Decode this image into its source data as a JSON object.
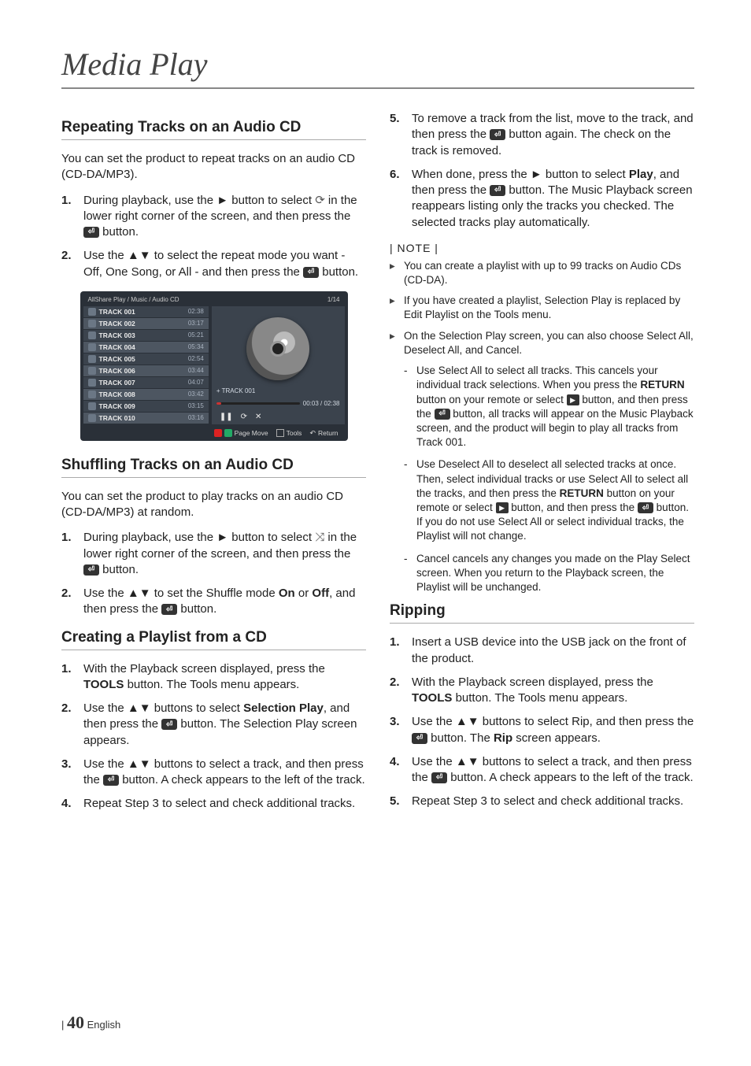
{
  "page": {
    "title": "Media Play",
    "footer_page": "40",
    "footer_lang": "English"
  },
  "left": {
    "sec1": {
      "title": "Repeating Tracks on an Audio CD",
      "intro": "You can set the product to repeat tracks on an audio CD (CD-DA/MP3).",
      "steps": [
        "During playback, use the ► button to select ⟳ in the lower right corner of the screen, and then press the ⏎ button.",
        "Use the ▲▼ to select the repeat mode you want - Off, One Song, or All - and then press the ⏎ button."
      ]
    },
    "player": {
      "breadcrumb": "AllShare Play  / Music /      Audio CD",
      "counter": "1/14",
      "tracks": [
        {
          "name": "TRACK 001",
          "time": "02:38",
          "alt": false
        },
        {
          "name": "TRACK 002",
          "time": "03:17",
          "alt": true
        },
        {
          "name": "TRACK 003",
          "time": "05:21",
          "alt": false
        },
        {
          "name": "TRACK 004",
          "time": "05:34",
          "alt": true
        },
        {
          "name": "TRACK 005",
          "time": "02:54",
          "alt": false
        },
        {
          "name": "TRACK 006",
          "time": "03:44",
          "alt": true
        },
        {
          "name": "TRACK 007",
          "time": "04:07",
          "alt": false
        },
        {
          "name": "TRACK 008",
          "time": "03:42",
          "alt": true
        },
        {
          "name": "TRACK 009",
          "time": "03:15",
          "alt": false
        },
        {
          "name": "TRACK 010",
          "time": "03:16",
          "alt": true
        }
      ],
      "now_playing": "+ TRACK 001",
      "elapsed": "00:03 / 02:38",
      "ctrl_glyphs": [
        "❚❚",
        "⟳",
        "✕"
      ],
      "bottom": {
        "pagemove": "Page Move",
        "tools": "Tools",
        "return": "Return"
      }
    },
    "sec2": {
      "title": "Shuffling Tracks on an Audio CD",
      "intro": "You can set the product to play tracks on an audio CD (CD-DA/MP3) at random.",
      "steps": [
        "During playback, use the ► button to select ⤨ in the lower right corner of the screen, and then press the ⏎ button.",
        "Use the ▲▼ to set the Shuffle mode On or Off, and then press the ⏎ button."
      ]
    },
    "sec3": {
      "title": "Creating a Playlist from a CD",
      "steps": [
        "With the Playback screen displayed, press the TOOLS button. The Tools menu appears.",
        "Use the ▲▼ buttons to select Selection Play, and then press the ⏎ button. The Selection Play screen appears.",
        "Use the ▲▼ buttons to select a track, and then press the ⏎ button. A check appears to the left of the track.",
        "Repeat Step 3 to select and check additional tracks."
      ]
    }
  },
  "right": {
    "cont_steps": [
      "To remove a track from the list, move to the track, and then press the ⏎ button again. The check on the track is removed.",
      "When done, press the ► button to select Play, and then press the ⏎ button. The Music Playback screen reappears listing only the tracks you checked. The selected tracks play automatically."
    ],
    "note_label": "| NOTE |",
    "notes": [
      "You can create a playlist with up to 99 tracks on Audio CDs (CD-DA).",
      "If you have created a playlist, Selection Play is replaced by Edit Playlist on the Tools menu.",
      "On the Selection Play screen, you can also choose Select All, Deselect All, and Cancel."
    ],
    "subnotes": [
      "Use Select All to select all tracks. This cancels your individual track selections. When you press the RETURN button on your remote or select ▶ button, and then press the ⏎ button, all tracks will appear on the Music Playback screen, and the product will begin to play all tracks from Track 001.",
      "Use Deselect All to deselect all selected tracks at once. Then, select individual tracks or use Select All to select all the tracks, and then press the RETURN button on your remote or select ▶ button, and then press the ⏎ button. If you do not use Select All or select individual tracks, the Playlist will not change.",
      "Cancel cancels any changes you made on the Play Select screen. When you return to the Playback screen, the Playlist will be unchanged."
    ],
    "sec4": {
      "title": "Ripping",
      "steps": [
        "Insert a USB device into the USB jack on the front of the product.",
        "With the Playback screen displayed, press the TOOLS button. The Tools menu appears.",
        "Use the ▲▼ buttons to select Rip, and then press the ⏎ button. The Rip screen appears.",
        "Use the ▲▼ buttons to select a track, and then press the ⏎ button. A check appears to the left of the track.",
        "Repeat Step 3 to select and check additional tracks."
      ]
    }
  }
}
